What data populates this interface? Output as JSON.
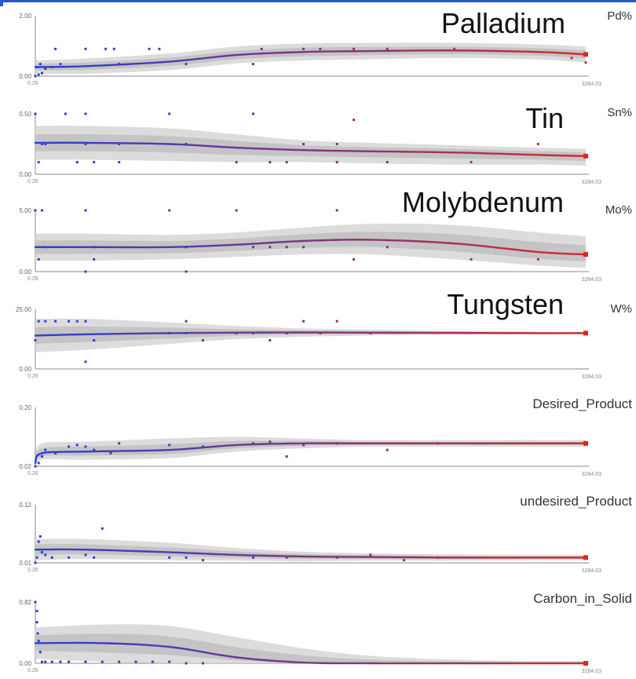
{
  "colors": {
    "blue": "#2b3fd6",
    "red": "#d42a2a",
    "band_outer": "#d6d6d6",
    "band_inner": "#b9b9b9",
    "axis": "#8a8a8a",
    "top_bar": "#2f55d4"
  },
  "chart_data": [
    {
      "type": "line",
      "big_title": "Palladium",
      "label": "Pd%",
      "x_min_label": "0.26",
      "x_max_label": "3284.03",
      "xlim": [
        0.26,
        3284.03
      ],
      "y_top_label": "2.00",
      "y_bot_label": "0.00",
      "ylim": [
        0,
        2
      ],
      "x": [
        0.26,
        300,
        800,
        1200,
        1600,
        2000,
        2500,
        3000,
        3284.03
      ],
      "mean": [
        0.3,
        0.33,
        0.48,
        0.7,
        0.8,
        0.83,
        0.85,
        0.8,
        0.72
      ],
      "upper": [
        0.52,
        0.58,
        0.75,
        0.98,
        1.08,
        1.1,
        1.1,
        1.05,
        0.98
      ],
      "lower": [
        0.08,
        0.08,
        0.2,
        0.42,
        0.52,
        0.56,
        0.6,
        0.55,
        0.46
      ],
      "points": [
        [
          0.26,
          0.0
        ],
        [
          20,
          0.05
        ],
        [
          40,
          0.1
        ],
        [
          10,
          0.3
        ],
        [
          30,
          0.4
        ],
        [
          60,
          0.25
        ],
        [
          100,
          0.3
        ],
        [
          150,
          0.4
        ],
        [
          120,
          0.9
        ],
        [
          300,
          0.9
        ],
        [
          420,
          0.9
        ],
        [
          470,
          0.9
        ],
        [
          500,
          0.4
        ],
        [
          680,
          0.9
        ],
        [
          740,
          0.9
        ],
        [
          900,
          0.4
        ],
        [
          1300,
          0.4
        ],
        [
          1350,
          0.9
        ],
        [
          1600,
          0.9
        ],
        [
          1700,
          0.9
        ],
        [
          1900,
          0.9
        ],
        [
          2100,
          0.9
        ],
        [
          2500,
          0.9
        ],
        [
          3200,
          0.6
        ],
        [
          3284.03,
          0.45
        ]
      ]
    },
    {
      "type": "line",
      "big_title": "Tin",
      "label": "Sn%",
      "x_min_label": "0.26",
      "x_max_label": "3284.03",
      "xlim": [
        0.26,
        3284.03
      ],
      "y_top_label": "0.50",
      "y_bot_label": "0.00",
      "ylim": [
        0,
        0.5
      ],
      "x": [
        0.26,
        300,
        800,
        1200,
        1600,
        2000,
        2500,
        3000,
        3284.03
      ],
      "mean": [
        0.26,
        0.26,
        0.25,
        0.22,
        0.2,
        0.19,
        0.18,
        0.16,
        0.15
      ],
      "upper": [
        0.4,
        0.4,
        0.38,
        0.33,
        0.28,
        0.26,
        0.24,
        0.22,
        0.21
      ],
      "lower": [
        0.12,
        0.12,
        0.11,
        0.1,
        0.1,
        0.09,
        0.08,
        0.08,
        0.07
      ],
      "points": [
        [
          0.26,
          0.5
        ],
        [
          20,
          0.1
        ],
        [
          40,
          0.25
        ],
        [
          60,
          0.25
        ],
        [
          180,
          0.5
        ],
        [
          250,
          0.1
        ],
        [
          300,
          0.5
        ],
        [
          300,
          0.25
        ],
        [
          350,
          0.1
        ],
        [
          500,
          0.1
        ],
        [
          500,
          0.25
        ],
        [
          800,
          0.5
        ],
        [
          900,
          0.25
        ],
        [
          1200,
          0.1
        ],
        [
          1300,
          0.5
        ],
        [
          1400,
          0.1
        ],
        [
          1500,
          0.1
        ],
        [
          1600,
          0.25
        ],
        [
          1800,
          0.25
        ],
        [
          1800,
          0.1
        ],
        [
          1900,
          0.45
        ],
        [
          2100,
          0.1
        ],
        [
          2600,
          0.1
        ],
        [
          3000,
          0.25
        ],
        [
          3284.03,
          0.15
        ]
      ]
    },
    {
      "type": "line",
      "big_title": "Molybdenum",
      "label": "Mo%",
      "x_min_label": "0.26",
      "x_max_label": "3284.03",
      "xlim": [
        0.26,
        3284.03
      ],
      "y_top_label": "5.00",
      "y_bot_label": "0.00",
      "ylim": [
        0,
        5
      ],
      "x": [
        0.26,
        300,
        800,
        1200,
        1600,
        2000,
        2500,
        3000,
        3284.03
      ],
      "mean": [
        2.0,
        2.0,
        2.0,
        2.2,
        2.5,
        2.6,
        2.3,
        1.6,
        1.4
      ],
      "upper": [
        3.1,
        3.1,
        3.0,
        3.2,
        3.6,
        3.9,
        3.8,
        3.2,
        2.9
      ],
      "lower": [
        0.9,
        0.9,
        1.0,
        1.2,
        1.4,
        1.4,
        1.0,
        0.5,
        0.3
      ],
      "points": [
        [
          0.26,
          5
        ],
        [
          20,
          1
        ],
        [
          40,
          5
        ],
        [
          60,
          2
        ],
        [
          300,
          5
        ],
        [
          350,
          1
        ],
        [
          350,
          2
        ],
        [
          300,
          0
        ],
        [
          800,
          5
        ],
        [
          900,
          2
        ],
        [
          900,
          0
        ],
        [
          1200,
          5
        ],
        [
          1300,
          2
        ],
        [
          1400,
          2
        ],
        [
          1500,
          2
        ],
        [
          1600,
          2
        ],
        [
          1800,
          5
        ],
        [
          1900,
          1
        ],
        [
          2100,
          2
        ],
        [
          2600,
          1
        ],
        [
          3000,
          1
        ],
        [
          3284.03,
          1.5
        ]
      ]
    },
    {
      "type": "line",
      "big_title": "Tungsten",
      "label": "W%",
      "x_min_label": "0.26",
      "x_max_label": "3284.03",
      "xlim": [
        0.26,
        3284.03
      ],
      "y_top_label": "25.00",
      "y_bot_label": "0.00",
      "ylim": [
        0,
        25
      ],
      "x": [
        0.26,
        300,
        800,
        1200,
        1600,
        2000,
        2500,
        3000,
        3284.03
      ],
      "mean": [
        14,
        14.5,
        15,
        15.2,
        15.3,
        15.2,
        15.1,
        15.0,
        15.0
      ],
      "upper": [
        21,
        21,
        19.5,
        18,
        17,
        16.5,
        16,
        15.6,
        15.6
      ],
      "lower": [
        7,
        8,
        10.5,
        12.5,
        13.5,
        14,
        14.3,
        14.5,
        14.5
      ],
      "points": [
        [
          0.26,
          12
        ],
        [
          20,
          20
        ],
        [
          60,
          20
        ],
        [
          120,
          20
        ],
        [
          200,
          20
        ],
        [
          250,
          20
        ],
        [
          300,
          20
        ],
        [
          350,
          12
        ],
        [
          300,
          3
        ],
        [
          800,
          15
        ],
        [
          900,
          15
        ],
        [
          900,
          20
        ],
        [
          1000,
          12
        ],
        [
          1200,
          15
        ],
        [
          1300,
          15
        ],
        [
          1400,
          12
        ],
        [
          1500,
          15
        ],
        [
          1600,
          20
        ],
        [
          1700,
          15
        ],
        [
          1800,
          20
        ],
        [
          2000,
          15
        ],
        [
          3284.03,
          15
        ]
      ]
    },
    {
      "type": "line",
      "big_title": "",
      "label": "Desired_Product",
      "x_min_label": "0.26",
      "x_max_label": "3284.03",
      "xlim": [
        0.26,
        3284.03
      ],
      "y_top_label": "0.20",
      "y_bot_label": "0.02",
      "ylim": [
        0.02,
        0.2
      ],
      "x": [
        0.26,
        40,
        300,
        800,
        1200,
        1600,
        2000,
        2500,
        3000,
        3284.03
      ],
      "mean": [
        0.03,
        0.06,
        0.065,
        0.07,
        0.085,
        0.09,
        0.09,
        0.09,
        0.09,
        0.09
      ],
      "upper": [
        0.05,
        0.09,
        0.095,
        0.105,
        0.11,
        0.105,
        0.1,
        0.1,
        0.1,
        0.1
      ],
      "lower": [
        0.01,
        0.04,
        0.04,
        0.045,
        0.065,
        0.075,
        0.08,
        0.08,
        0.08,
        0.08
      ],
      "points": [
        [
          0.26,
          0.02
        ],
        [
          20,
          0.03
        ],
        [
          40,
          0.05
        ],
        [
          60,
          0.07
        ],
        [
          120,
          0.06
        ],
        [
          200,
          0.08
        ],
        [
          250,
          0.085
        ],
        [
          300,
          0.08
        ],
        [
          350,
          0.07
        ],
        [
          450,
          0.06
        ],
        [
          500,
          0.09
        ],
        [
          800,
          0.085
        ],
        [
          1000,
          0.08
        ],
        [
          1300,
          0.09
        ],
        [
          1400,
          0.095
        ],
        [
          1500,
          0.05
        ],
        [
          1600,
          0.085
        ],
        [
          1800,
          0.09
        ],
        [
          2100,
          0.07
        ],
        [
          2400,
          0.09
        ],
        [
          3284.03,
          0.09
        ]
      ]
    },
    {
      "type": "line",
      "big_title": "",
      "label": "undesired_Product",
      "x_min_label": "0.26",
      "x_max_label": "3284.03",
      "xlim": [
        0.26,
        3284.03
      ],
      "y_top_label": "0.12",
      "y_bot_label": "0.01",
      "ylim": [
        0.01,
        0.12
      ],
      "x": [
        0.26,
        300,
        800,
        1200,
        1600,
        2000,
        2500,
        3000,
        3284.03
      ],
      "mean": [
        0.035,
        0.035,
        0.03,
        0.025,
        0.022,
        0.021,
        0.02,
        0.02,
        0.02
      ],
      "upper": [
        0.055,
        0.055,
        0.048,
        0.038,
        0.031,
        0.028,
        0.026,
        0.025,
        0.025
      ],
      "lower": [
        0.015,
        0.017,
        0.015,
        0.014,
        0.013,
        0.014,
        0.014,
        0.015,
        0.015
      ],
      "points": [
        [
          0.26,
          0.01
        ],
        [
          10,
          0.02
        ],
        [
          20,
          0.05
        ],
        [
          30,
          0.06
        ],
        [
          40,
          0.03
        ],
        [
          60,
          0.025
        ],
        [
          100,
          0.02
        ],
        [
          200,
          0.02
        ],
        [
          300,
          0.025
        ],
        [
          350,
          0.02
        ],
        [
          400,
          0.075
        ],
        [
          800,
          0.02
        ],
        [
          900,
          0.02
        ],
        [
          1000,
          0.015
        ],
        [
          1300,
          0.02
        ],
        [
          1500,
          0.02
        ],
        [
          1800,
          0.02
        ],
        [
          2000,
          0.025
        ],
        [
          2200,
          0.015
        ],
        [
          2400,
          0.02
        ],
        [
          3284.03,
          0.02
        ]
      ]
    },
    {
      "type": "line",
      "big_title": "",
      "label": "Carbon_in_Solid",
      "x_min_label": "0.26",
      "x_max_label": "3284.03",
      "xlim": [
        0.26,
        3284.03
      ],
      "y_top_label": "0.82",
      "y_bot_label": "0.00",
      "ylim": [
        0,
        0.82
      ],
      "x": [
        0.26,
        400,
        800,
        1200,
        1600,
        2000,
        2500,
        3000,
        3284.03
      ],
      "mean": [
        0.27,
        0.27,
        0.22,
        0.08,
        0.01,
        0.0,
        0.0,
        0.0,
        0.0
      ],
      "upper": [
        0.48,
        0.52,
        0.5,
        0.35,
        0.2,
        0.1,
        0.05,
        0.03,
        0.03
      ],
      "lower": [
        0.06,
        0.02,
        0.0,
        0.0,
        0.0,
        0.0,
        0.0,
        0.0,
        0.0
      ],
      "points": [
        [
          0.26,
          0.82
        ],
        [
          10,
          0.7
        ],
        [
          10,
          0.55
        ],
        [
          15,
          0.4
        ],
        [
          20,
          0.3
        ],
        [
          30,
          0.15
        ],
        [
          40,
          0.02
        ],
        [
          60,
          0.02
        ],
        [
          100,
          0.02
        ],
        [
          150,
          0.02
        ],
        [
          200,
          0.02
        ],
        [
          300,
          0.02
        ],
        [
          400,
          0.02
        ],
        [
          500,
          0.02
        ],
        [
          600,
          0.02
        ],
        [
          700,
          0.02
        ],
        [
          800,
          0.02
        ],
        [
          900,
          0.0
        ],
        [
          1000,
          0.0
        ],
        [
          3284.03,
          0.0
        ]
      ]
    }
  ]
}
